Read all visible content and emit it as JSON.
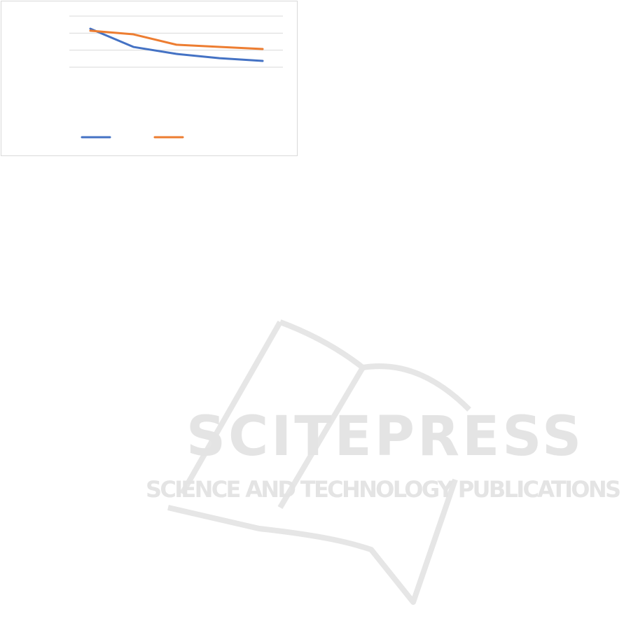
{
  "chart_data": {
    "type": "line",
    "title": "",
    "xlabel": "",
    "ylabel": "",
    "x": [
      1,
      2,
      3,
      4,
      5
    ],
    "ylim": [
      0,
      3
    ],
    "yticks": [
      0,
      1,
      2,
      3
    ],
    "grid": true,
    "legend_placement": "bottom",
    "series": [
      {
        "values": [
          2.26,
          1.19,
          0.78,
          0.53,
          0.37
        ],
        "color": "#4472c4"
      },
      {
        "values": [
          2.14,
          1.93,
          1.32,
          1.19,
          1.07
        ],
        "color": "#ed7d31"
      }
    ]
  },
  "watermark": {
    "name": "SCITEPRESS",
    "tagline": "SCIENCE AND TECHNOLOGY PUBLICATIONS",
    "color": "#e4e4e4"
  }
}
